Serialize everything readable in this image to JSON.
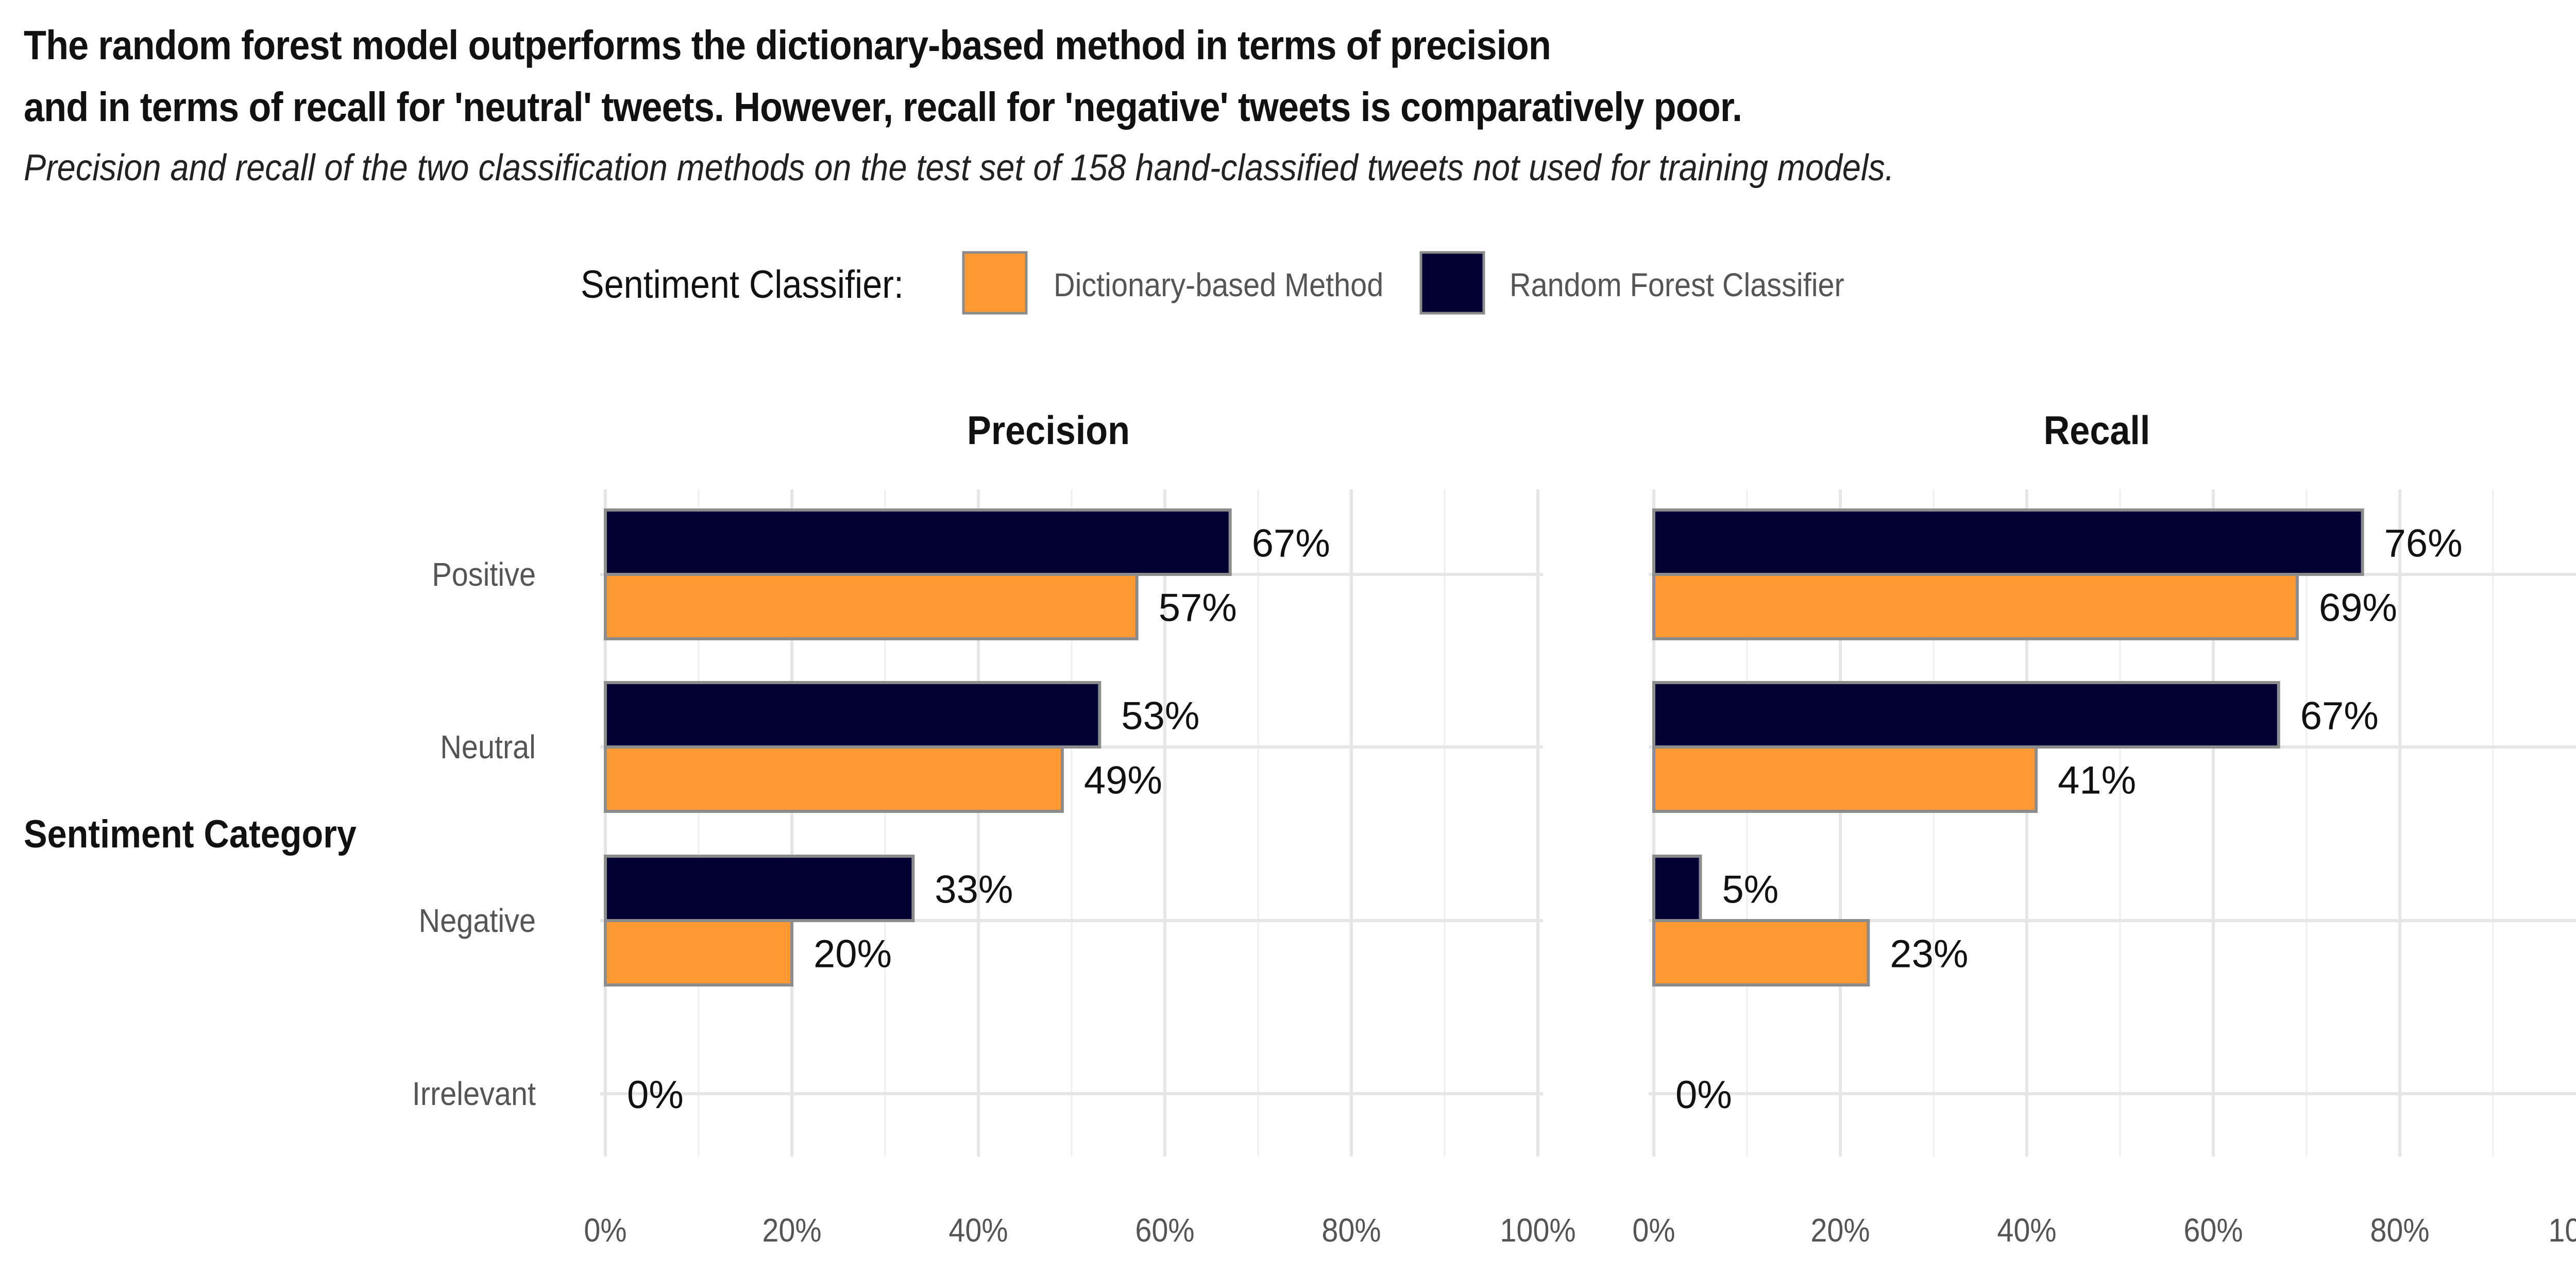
{
  "title_line1": "The random forest model outperforms the dictionary-based method in terms of precision",
  "title_line2": "and in terms of recall for 'neutral' tweets. However, recall for 'negative' tweets is comparatively poor.",
  "subtitle": "Precision and recall of the two classification methods on the test set of 158 hand-classified tweets not used for training models.",
  "legend": {
    "title": "Sentiment Classifier:",
    "items": [
      {
        "label": "Dictionary-based Method",
        "color": "#FF9933"
      },
      {
        "label": "Random Forest Classifier",
        "color": "#000033"
      }
    ]
  },
  "y_axis_title": "Sentiment Category",
  "bar_border_color": "#8C8C8C",
  "chart_data": {
    "type": "bar",
    "orientation": "horizontal",
    "categories": [
      "Positive",
      "Neutral",
      "Negative",
      "Irrelevant"
    ],
    "x_ticks": [
      "0%",
      "20%",
      "40%",
      "60%",
      "80%",
      "100%"
    ],
    "xlim": [
      0,
      100
    ],
    "grid": true,
    "legend_position": "top",
    "ylabel": "Sentiment Category",
    "panels": [
      {
        "title": "Precision",
        "series": [
          {
            "name": "Random Forest Classifier",
            "values": [
              67,
              53,
              33,
              0
            ],
            "labels": [
              "67%",
              "53%",
              "33%",
              "0%"
            ]
          },
          {
            "name": "Dictionary-based Method",
            "values": [
              57,
              49,
              20,
              null
            ],
            "labels": [
              "57%",
              "49%",
              "20%",
              ""
            ]
          }
        ]
      },
      {
        "title": "Recall",
        "series": [
          {
            "name": "Random Forest Classifier",
            "values": [
              76,
              67,
              5,
              0
            ],
            "labels": [
              "76%",
              "67%",
              "5%",
              "0%"
            ]
          },
          {
            "name": "Dictionary-based Method",
            "values": [
              69,
              41,
              23,
              null
            ],
            "labels": [
              "69%",
              "41%",
              "23%",
              ""
            ]
          }
        ]
      }
    ]
  }
}
